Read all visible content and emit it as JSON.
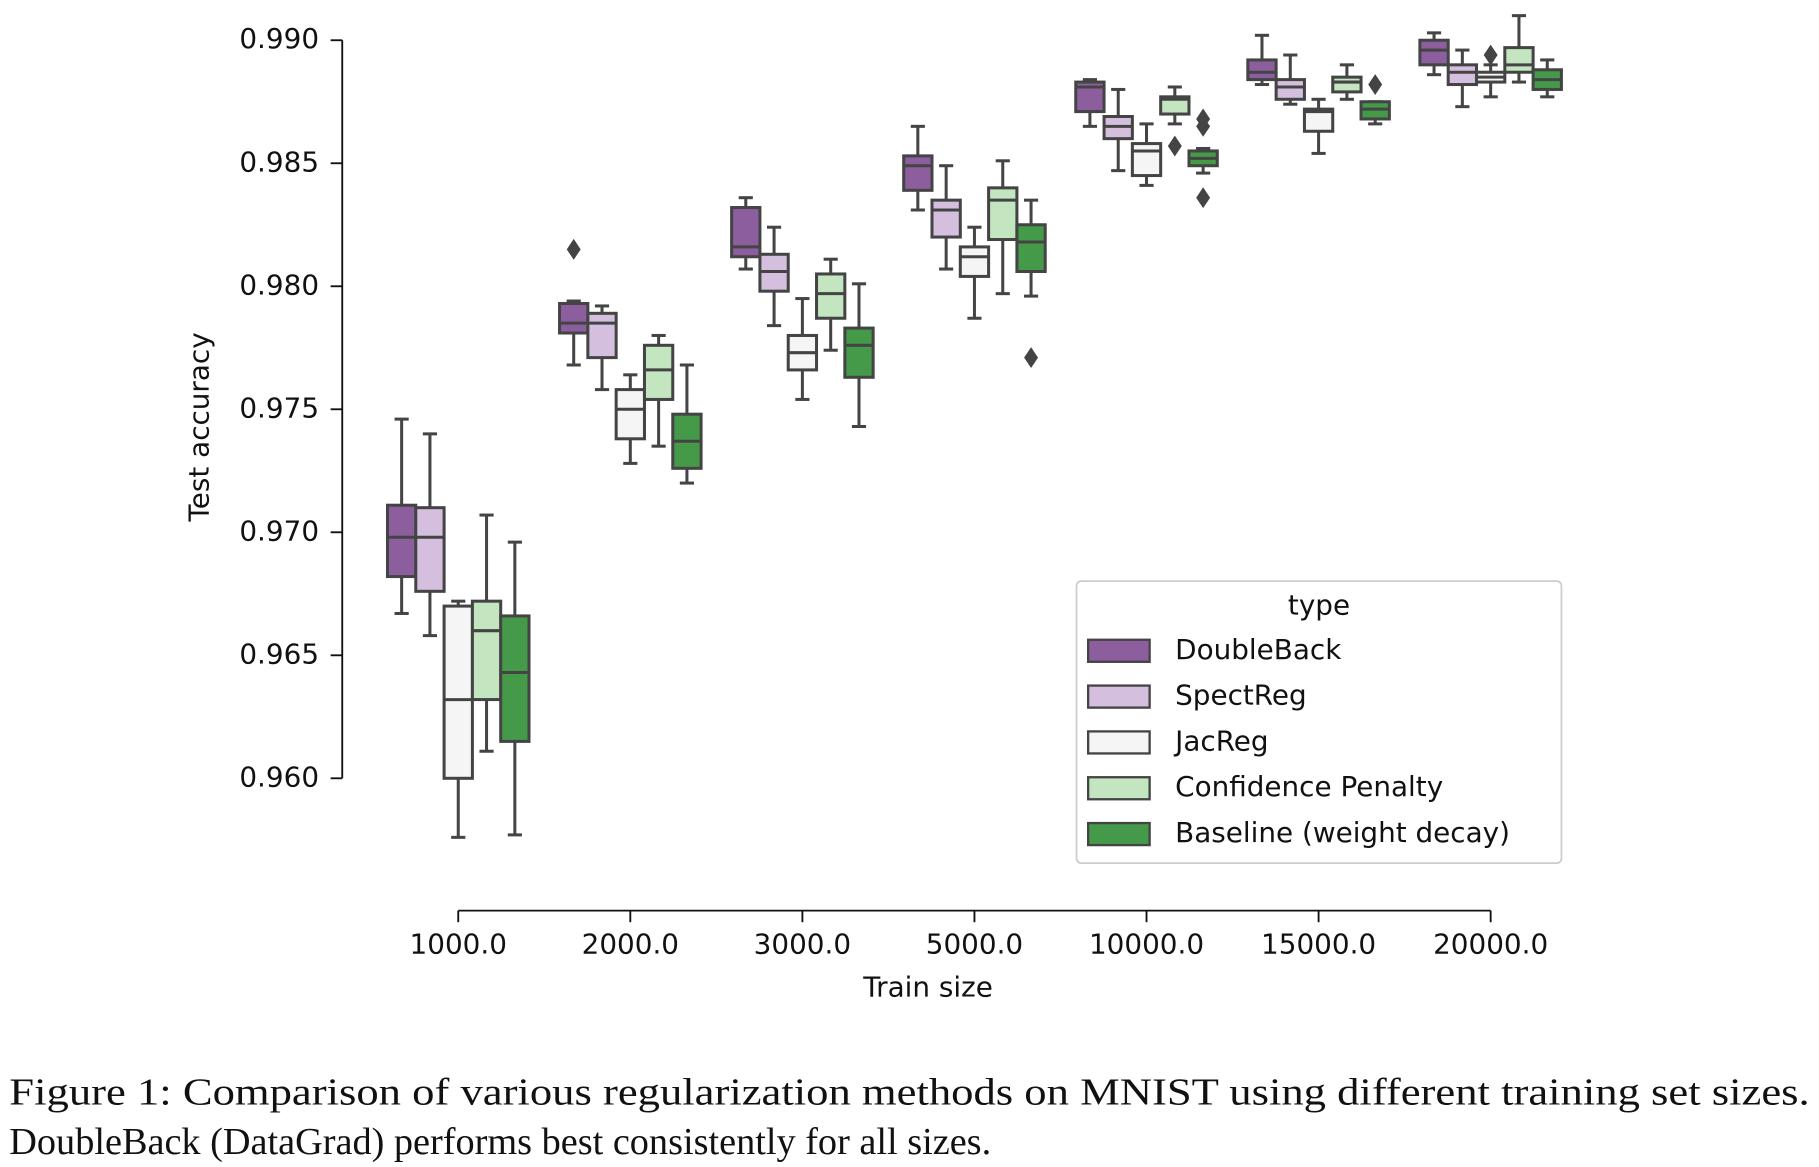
{
  "chart_data": {
    "type": "box",
    "x_label": "Train size",
    "y_label": "Test accuracy",
    "categories": [
      "1000.0",
      "2000.0",
      "3000.0",
      "5000.0",
      "10000.0",
      "15000.0",
      "20000.0"
    ],
    "ylim": [
      0.9558,
      0.9914
    ],
    "yticks": [
      {
        "value": 0.96,
        "label": "0.960"
      },
      0.965,
      {
        "value": 0.97,
        "label": "0.970"
      },
      0.975,
      {
        "value": 0.98,
        "label": "0.980"
      },
      0.985,
      {
        "value": 0.99,
        "label": "0.990"
      }
    ],
    "legend_title": "type",
    "legend_position": "lower right",
    "edge_color": "#444444",
    "series": [
      {
        "name": "DoubleBack",
        "color": "#8c5e9e",
        "stats": [
          [
            0.9667,
            0.9682,
            0.9698,
            0.9711,
            0.9746
          ],
          [
            0.9768,
            0.9781,
            0.9785,
            0.9793,
            0.9794
          ],
          [
            0.9807,
            0.9812,
            0.9816,
            0.9832,
            0.9836
          ],
          [
            0.9831,
            0.9839,
            0.9849,
            0.9853,
            0.9865
          ],
          [
            0.9865,
            0.9871,
            0.9881,
            0.9883,
            0.9884
          ],
          [
            0.9882,
            0.9884,
            0.9887,
            0.9892,
            0.9902
          ],
          [
            0.9886,
            0.989,
            0.9896,
            0.99,
            0.9903
          ]
        ],
        "outliers": [
          [],
          [
            0.9815
          ],
          [],
          [],
          [],
          [],
          []
        ]
      },
      {
        "name": "SpectReg",
        "color": "#d5bfdf",
        "stats": [
          [
            0.9658,
            0.9676,
            0.9698,
            0.971,
            0.974
          ],
          [
            0.9758,
            0.9771,
            0.9785,
            0.9789,
            0.9792
          ],
          [
            0.9784,
            0.9798,
            0.9806,
            0.9813,
            0.9824
          ],
          [
            0.9807,
            0.982,
            0.9831,
            0.9835,
            0.9849
          ],
          [
            0.9847,
            0.986,
            0.9865,
            0.9869,
            0.988
          ],
          [
            0.9874,
            0.9876,
            0.9881,
            0.9884,
            0.9894
          ],
          [
            0.9873,
            0.9882,
            0.9887,
            0.989,
            0.9896
          ]
        ],
        "outliers": [
          [],
          [],
          [],
          [],
          [],
          [],
          []
        ]
      },
      {
        "name": "JacReg",
        "color": "#f5f5f5",
        "stats": [
          [
            0.9576,
            0.96,
            0.9632,
            0.967,
            0.9672
          ],
          [
            0.9728,
            0.9738,
            0.975,
            0.9758,
            0.9764
          ],
          [
            0.9754,
            0.9766,
            0.9773,
            0.978,
            0.9795
          ],
          [
            0.9787,
            0.9804,
            0.9812,
            0.9816,
            0.9824
          ],
          [
            0.9841,
            0.9845,
            0.9855,
            0.9858,
            0.9866
          ],
          [
            0.9854,
            0.9863,
            0.9871,
            0.9872,
            0.9876
          ],
          [
            0.9877,
            0.9883,
            0.9885,
            0.9887,
            0.989
          ]
        ],
        "outliers": [
          [],
          [],
          [],
          [],
          [],
          [],
          [
            0.9894
          ]
        ]
      },
      {
        "name": "Confidence Penalty",
        "color": "#c3e5bf",
        "stats": [
          [
            0.9611,
            0.9632,
            0.966,
            0.9672,
            0.9707
          ],
          [
            0.9735,
            0.9754,
            0.9766,
            0.9776,
            0.978
          ],
          [
            0.9774,
            0.9787,
            0.9797,
            0.9805,
            0.9811
          ],
          [
            0.9797,
            0.9819,
            0.9835,
            0.984,
            0.9851
          ],
          [
            0.9866,
            0.987,
            0.9876,
            0.9877,
            0.9881
          ],
          [
            0.9876,
            0.9879,
            0.9883,
            0.9885,
            0.989
          ],
          [
            0.9883,
            0.9887,
            0.989,
            0.9897,
            0.991
          ]
        ],
        "outliers": [
          [],
          [],
          [],
          [],
          [
            0.9857
          ],
          [],
          []
        ]
      },
      {
        "name": "Baseline (weight decay)",
        "color": "#459a4a",
        "stats": [
          [
            0.9577,
            0.9615,
            0.9643,
            0.9666,
            0.9696
          ],
          [
            0.972,
            0.9726,
            0.9737,
            0.9748,
            0.9768
          ],
          [
            0.9743,
            0.9763,
            0.9776,
            0.9783,
            0.9801
          ],
          [
            0.9796,
            0.9806,
            0.9818,
            0.9825,
            0.9835
          ],
          [
            0.9846,
            0.9849,
            0.9852,
            0.9855,
            0.9856
          ],
          [
            0.9866,
            0.9868,
            0.9872,
            0.9875,
            0.9875
          ],
          [
            0.9877,
            0.988,
            0.9884,
            0.9888,
            0.9892
          ]
        ],
        "outliers": [
          [],
          [],
          [],
          [
            0.9771
          ],
          [
            0.9868,
            0.9865,
            0.9836
          ],
          [
            0.9882
          ],
          []
        ]
      }
    ]
  },
  "caption": [
    "Figure 1:  Comparison of various regularization methods on MNIST using different training set sizes.",
    "DoubleBack (DataGrad) performs best consistently for all sizes."
  ]
}
